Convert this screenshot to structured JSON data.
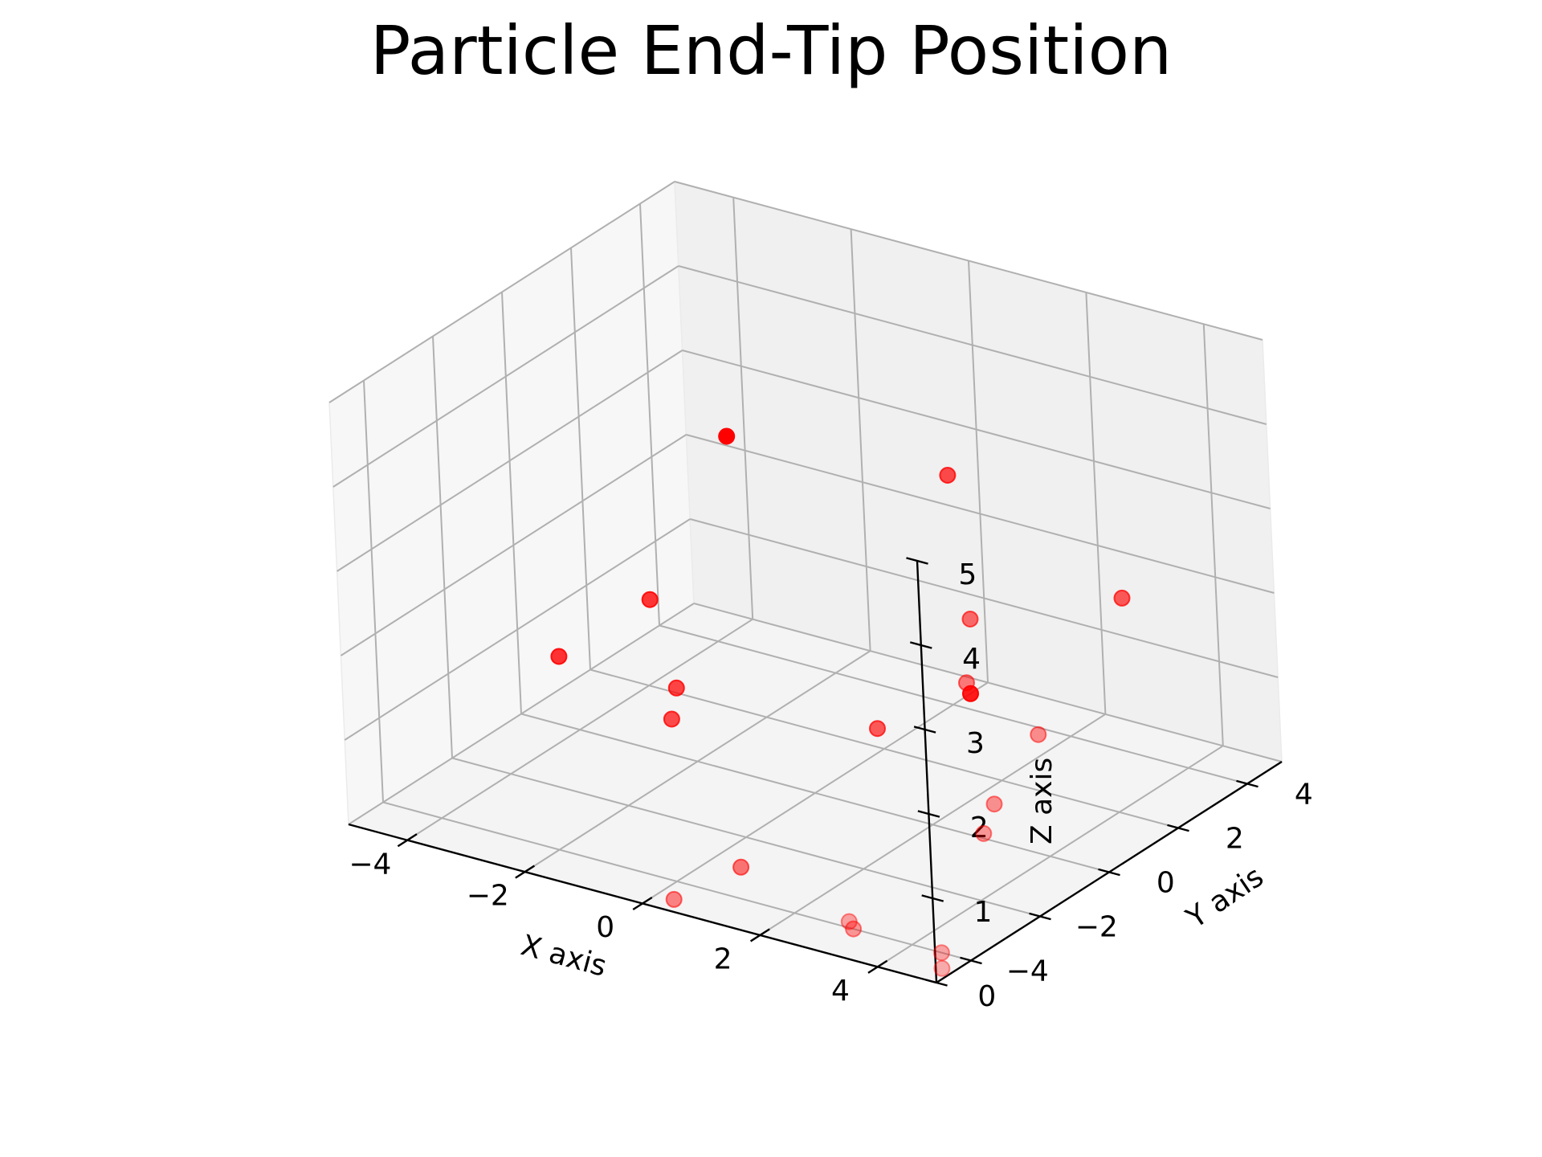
{
  "chart_data": {
    "type": "scatter",
    "title": "Particle End-Tip Position",
    "xlabel": "X axis",
    "ylabel": "Y axis",
    "zlabel": "Z axis",
    "xlim": [
      -5,
      5
    ],
    "ylim": [
      -5,
      5
    ],
    "zlim": [
      0,
      5
    ],
    "xticks": [
      {
        "value": -4,
        "label": "−4"
      },
      {
        "value": -2,
        "label": "−2"
      },
      {
        "value": 0,
        "label": "0"
      },
      {
        "value": 2,
        "label": "2"
      },
      {
        "value": 4,
        "label": "4"
      }
    ],
    "yticks": [
      {
        "value": -4,
        "label": "−4"
      },
      {
        "value": -2,
        "label": "−2"
      },
      {
        "value": 0,
        "label": "0"
      },
      {
        "value": 2,
        "label": "2"
      },
      {
        "value": 4,
        "label": "4"
      }
    ],
    "zticks": [
      {
        "value": 0,
        "label": "0"
      },
      {
        "value": 1,
        "label": "1"
      },
      {
        "value": 2,
        "label": "2"
      },
      {
        "value": 3,
        "label": "3"
      },
      {
        "value": 4,
        "label": "4"
      },
      {
        "value": 5,
        "label": "5"
      }
    ],
    "grid": true,
    "marker_color": "#ff0000",
    "points": [
      {
        "x": -4.0,
        "y": 4.5,
        "z": 2.3
      },
      {
        "x": 1.0,
        "y": 2.5,
        "z": 3.3
      },
      {
        "x": 3.6,
        "y": 3.0,
        "z": 2.2
      },
      {
        "x": 2.5,
        "y": 0.5,
        "z": 2.4
      },
      {
        "x": 3.0,
        "y": -0.5,
        "z": 2.0
      },
      {
        "x": 4.5,
        "y": -1.0,
        "z": 1.8
      },
      {
        "x": 1.0,
        "y": 0.2,
        "z": 0.9
      },
      {
        "x": 4.3,
        "y": -2.0,
        "z": 1.2
      },
      {
        "x": 4.4,
        "y": -2.5,
        "z": 1.0
      },
      {
        "x": -3.0,
        "y": 0.5,
        "z": 1.6
      },
      {
        "x": 0.0,
        "y": 4.5,
        "z": 0.0
      },
      {
        "x": -4.0,
        "y": -0.5,
        "z": 1.0
      },
      {
        "x": -2.0,
        "y": -0.5,
        "z": 1.0
      },
      {
        "x": -1.8,
        "y": -1.0,
        "z": 0.8
      },
      {
        "x": 4.5,
        "y": -4.0,
        "z": 0.0
      },
      {
        "x": 3.0,
        "y": -4.0,
        "z": 0.0
      },
      {
        "x": 4.8,
        "y": -4.5,
        "z": 0.0
      },
      {
        "x": 0.5,
        "y": -3.0,
        "z": 0.0
      },
      {
        "x": 3.3,
        "y": -4.6,
        "z": 0.3
      },
      {
        "x": 0.3,
        "y": -4.6,
        "z": 0.0
      }
    ]
  }
}
